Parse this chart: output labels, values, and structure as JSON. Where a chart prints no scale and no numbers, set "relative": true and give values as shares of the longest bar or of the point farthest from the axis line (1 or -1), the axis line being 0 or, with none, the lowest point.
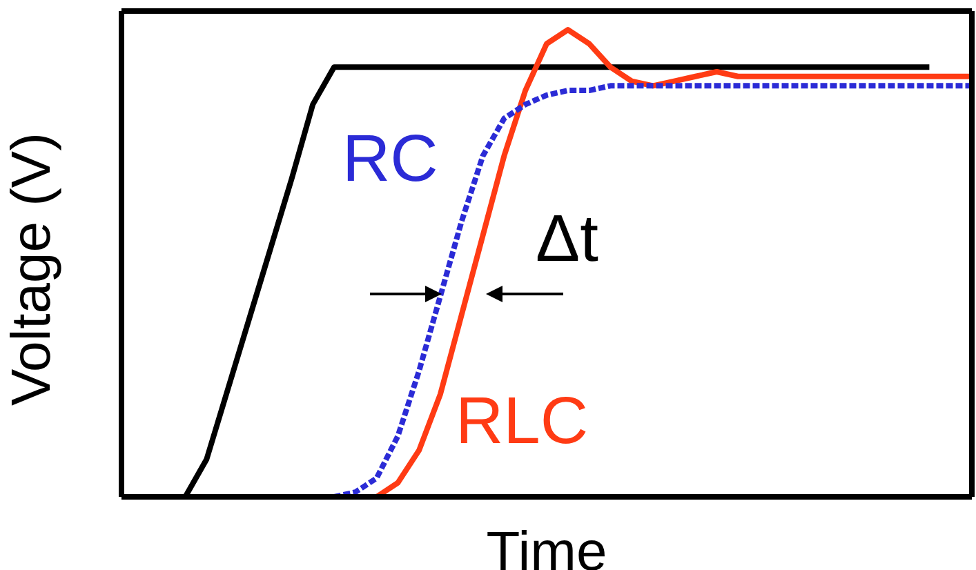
{
  "chart_data": {
    "type": "line",
    "relative": true,
    "xlabel": "Time",
    "ylabel": "Voltage (V)",
    "marker": "none",
    "annotations": [
      "Δt"
    ],
    "categories": [
      null,
      null,
      null,
      null,
      null,
      null,
      null,
      null,
      null,
      null,
      null,
      null,
      null,
      null,
      null,
      null,
      null,
      null,
      null,
      null,
      null,
      null,
      null,
      null,
      null,
      null,
      null,
      null,
      null,
      null,
      null,
      null,
      null,
      null,
      null,
      null,
      null,
      null,
      null,
      null,
      null
    ],
    "series": [
      {
        "color": "#000000",
        "line_style": "solid",
        "values": [
          0,
          0,
          0,
          0,
          0.08,
          0.23,
          0.38,
          0.53,
          0.68,
          0.84,
          0.92,
          0.92,
          0.92,
          0.92,
          0.92,
          0.92,
          0.92,
          0.92,
          0.92,
          0.92,
          0.92,
          0.92,
          0.92,
          0.92,
          0.92,
          0.92,
          0.92,
          0.92,
          0.92,
          0.92,
          0.92,
          0.92,
          0.92,
          0.92,
          0.92,
          0.92,
          0.92,
          0.92,
          0.92,
          null,
          null
        ]
      },
      {
        "name": "RLC",
        "color": "#ff3b14",
        "line_style": "solid",
        "values": [
          null,
          null,
          null,
          null,
          null,
          null,
          null,
          null,
          null,
          null,
          null,
          null,
          0,
          0.03,
          0.1,
          0.22,
          0.39,
          0.56,
          0.73,
          0.87,
          0.97,
          1,
          0.97,
          0.92,
          0.89,
          0.88,
          0.89,
          0.9,
          0.91,
          0.9,
          0.9,
          0.9,
          0.9,
          0.9,
          0.9,
          0.9,
          0.9,
          0.9,
          0.9,
          0.9,
          0.9
        ]
      },
      {
        "name": "RC",
        "color": "#2b2bd6",
        "line_style": "dashed",
        "values": [
          null,
          null,
          null,
          null,
          null,
          null,
          null,
          null,
          null,
          null,
          0,
          0.01,
          0.04,
          0.13,
          0.27,
          0.43,
          0.59,
          0.73,
          0.81,
          0.84,
          0.86,
          0.87,
          0.87,
          0.88,
          0.88,
          0.88,
          0.88,
          0.88,
          0.88,
          0.88,
          0.88,
          0.88,
          0.88,
          0.88,
          0.88,
          0.88,
          0.88,
          0.88,
          0.88,
          0.88,
          0.88
        ]
      }
    ]
  }
}
